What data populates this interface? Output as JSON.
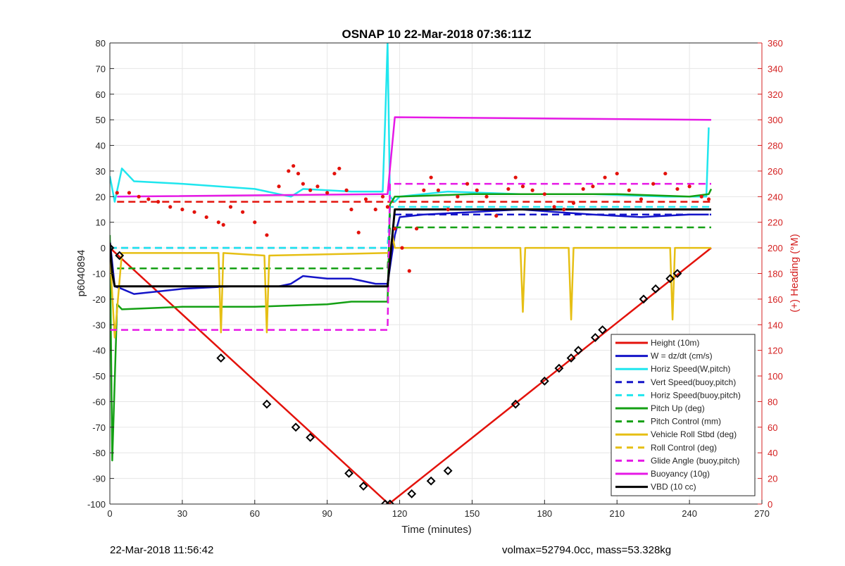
{
  "chart_data": {
    "type": "line",
    "title": "OSNAP 10 22-Mar-2018 07:36:11Z",
    "xlabel": "Time (minutes)",
    "ylabel": "p6040894",
    "ylabel_right": "(+) Heading (°M)",
    "xlim": [
      0,
      270
    ],
    "ylim": [
      -100,
      80
    ],
    "ylim_right": [
      0,
      360
    ],
    "xticks": [
      "0",
      "30",
      "60",
      "90",
      "120",
      "150",
      "180",
      "210",
      "240",
      "270"
    ],
    "yticks": [
      "-100",
      "-90",
      "-80",
      "-70",
      "-60",
      "-50",
      "-40",
      "-30",
      "-20",
      "-10",
      "0",
      "10",
      "20",
      "30",
      "40",
      "50",
      "60",
      "70",
      "80"
    ],
    "yticks_right": [
      "0",
      "20",
      "40",
      "60",
      "80",
      "100",
      "120",
      "140",
      "160",
      "180",
      "200",
      "220",
      "240",
      "260",
      "280",
      "300",
      "320",
      "340",
      "360"
    ],
    "grid": true,
    "legend_position": "bottom-right",
    "series": [
      {
        "name": "Height (10m)",
        "color": "#e3120b",
        "style": "solid",
        "x": [
          0,
          115.5,
          249
        ],
        "y": [
          0,
          -100,
          0
        ]
      },
      {
        "name": "W = dz/dt (cm/s)",
        "color": "#1414c8",
        "style": "solid",
        "x": [
          0,
          2,
          5,
          10,
          30,
          50,
          70,
          75,
          80,
          90,
          100,
          110,
          115,
          118,
          120,
          130,
          150,
          170,
          185,
          200,
          220,
          240,
          248
        ],
        "y": [
          3,
          -15,
          -16,
          -18,
          -16,
          -15,
          -15,
          -14,
          -11,
          -12,
          -12,
          -14,
          -14,
          5,
          12,
          13,
          14,
          15,
          14,
          13,
          12,
          13,
          13
        ]
      },
      {
        "name": "Horiz Speed(W,pitch)",
        "color": "#1fe6ee",
        "style": "solid",
        "x": [
          0,
          2,
          5,
          10,
          30,
          60,
          75,
          80,
          100,
          113,
          114,
          115,
          116,
          118,
          120,
          140,
          170,
          200,
          230,
          247,
          248
        ],
        "y": [
          28,
          18,
          31,
          26,
          25,
          23,
          20,
          23,
          22,
          22,
          50,
          80,
          20,
          18,
          20,
          22,
          21,
          21,
          20,
          20,
          47
        ]
      },
      {
        "name": "Vert Speed(buoy,pitch)",
        "color": "#1414c8",
        "style": "dash",
        "x": [
          0,
          115,
          116,
          249
        ],
        "y": [
          0,
          0,
          13,
          13
        ]
      },
      {
        "name": "Horiz Speed(buoy,pitch)",
        "color": "#1fe6ee",
        "style": "dash",
        "x": [
          0,
          115,
          116,
          249
        ],
        "y": [
          0,
          0,
          16,
          16
        ]
      },
      {
        "name": "Pitch Up (deg)",
        "color": "#14a014",
        "style": "solid",
        "x": [
          0,
          1,
          3,
          5,
          30,
          60,
          90,
          100,
          115,
          116,
          118,
          120,
          150,
          180,
          210,
          240,
          248,
          249
        ],
        "y": [
          5,
          -83,
          -22,
          -24,
          -23,
          -23,
          -22,
          -21,
          -21,
          17,
          20,
          20,
          21,
          21,
          21,
          20,
          21,
          23
        ]
      },
      {
        "name": "Pitch Control (mm)",
        "color": "#14a014",
        "style": "dash",
        "x": [
          3,
          115,
          116,
          249
        ],
        "y": [
          -8,
          -8,
          8,
          8
        ]
      },
      {
        "name": "Vehicle Roll Stbd (deg)",
        "color": "#e6bf14",
        "style": "solid",
        "x": [
          0,
          2,
          5,
          45,
          46,
          47,
          64,
          65,
          66,
          114,
          116,
          117,
          118,
          130,
          170,
          171,
          172,
          190,
          191,
          192,
          232,
          233,
          234,
          249
        ],
        "y": [
          -2,
          -35,
          -2,
          -2,
          -33,
          -2,
          -3,
          -33,
          -3,
          -2,
          -2,
          5,
          0,
          0,
          0,
          -25,
          0,
          0,
          -28,
          0,
          0,
          -28,
          0,
          0
        ]
      },
      {
        "name": "Roll Control (deg)",
        "color": "#e6bf14",
        "style": "dash",
        "x": [],
        "y": []
      },
      {
        "name": "Glide Angle (buoy,pitch)",
        "color": "#e619e6",
        "style": "dash",
        "x": [
          0,
          115,
          116,
          249
        ],
        "y": [
          -32,
          -32,
          25,
          25
        ]
      },
      {
        "name": "Buoyancy (10g)",
        "color": "#e619e6",
        "style": "solid",
        "x": [
          3,
          115,
          118,
          249
        ],
        "y": [
          20,
          21,
          51,
          50
        ]
      },
      {
        "name": "VBD (10 cc)",
        "color": "#000000",
        "style": "solid",
        "x": [
          0,
          1,
          2,
          115,
          118,
          249
        ],
        "y": [
          2,
          -10,
          -15,
          -15,
          15,
          15
        ]
      }
    ],
    "heading_scatter": {
      "name": "Heading",
      "color": "#e3120b",
      "axis": "right",
      "x": [
        3,
        8,
        12,
        16,
        20,
        25,
        30,
        35,
        40,
        45,
        47,
        50,
        55,
        60,
        65,
        70,
        74,
        76,
        78,
        80,
        83,
        86,
        90,
        93,
        95,
        98,
        100,
        103,
        106,
        110,
        113,
        115,
        118,
        121,
        124,
        127,
        130,
        133,
        136,
        140,
        144,
        148,
        152,
        156,
        160,
        165,
        168,
        171,
        175,
        180,
        184,
        188,
        192,
        196,
        200,
        205,
        210,
        215,
        220,
        225,
        230,
        235,
        240,
        245,
        248
      ],
      "y": [
        243,
        243,
        240,
        238,
        236,
        232,
        230,
        228,
        224,
        220,
        218,
        232,
        228,
        220,
        210,
        248,
        260,
        264,
        258,
        250,
        245,
        248,
        243,
        258,
        262,
        245,
        230,
        212,
        238,
        230,
        240,
        232,
        215,
        200,
        182,
        215,
        245,
        255,
        245,
        230,
        240,
        250,
        245,
        240,
        225,
        246,
        255,
        248,
        245,
        242,
        232,
        230,
        235,
        246,
        248,
        255,
        258,
        245,
        238,
        250,
        258,
        246,
        248,
        240,
        238
      ]
    },
    "heading_dash": {
      "color": "#e3120b",
      "style": "dash",
      "axis": "right",
      "y": 236
    },
    "markers": {
      "symbol": "diamond",
      "color": "#000000",
      "x": [
        0,
        4,
        46,
        65,
        77,
        83,
        99,
        105,
        114,
        116,
        125,
        133,
        140,
        168,
        180,
        186,
        191,
        194,
        201,
        204,
        221,
        226,
        232,
        235
      ],
      "y": [
        0,
        -3,
        -43,
        -61,
        -70,
        -74,
        -88,
        -93,
        -100,
        -100,
        -96,
        -91,
        -87,
        -61,
        -52,
        -47,
        -43,
        -40,
        -35,
        -32,
        -20,
        -16,
        -12,
        -10
      ]
    }
  },
  "footer": {
    "timestamp": "22-Mar-2018 11:56:42",
    "info": "volmax=52794.0cc, mass=53.328kg"
  }
}
